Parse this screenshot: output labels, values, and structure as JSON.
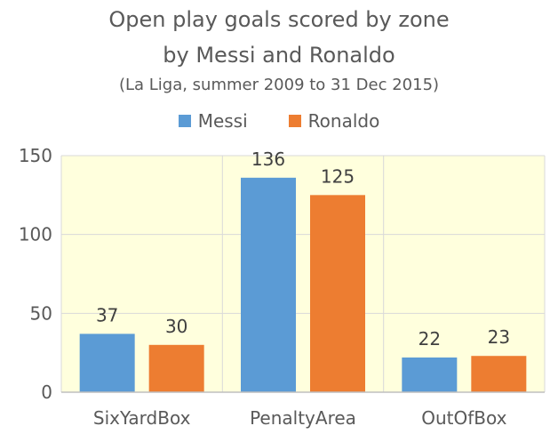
{
  "chart_data": {
    "type": "bar",
    "title_lines": [
      "Open play goals scored by zone",
      "by Messi and Ronaldo"
    ],
    "subtitle": "(La Liga, summer  2009 to 31 Dec 2015)",
    "categories": [
      "SixYardBox",
      "PenaltyArea",
      "OutOfBox"
    ],
    "series": [
      {
        "name": "Messi",
        "values": [
          37,
          136,
          22
        ],
        "color": "#5B9BD5"
      },
      {
        "name": "Ronaldo",
        "values": [
          30,
          125,
          23
        ],
        "color": "#ED7D31"
      }
    ],
    "ylim": [
      0,
      150
    ],
    "yticks": [
      0,
      50,
      100,
      150
    ],
    "xlabel": "",
    "ylabel": "",
    "grid": true,
    "plot_background": "#FFFFDD",
    "gridline_color": "#D9D9D9",
    "legend_position": "top-center",
    "show_data_labels": true
  }
}
